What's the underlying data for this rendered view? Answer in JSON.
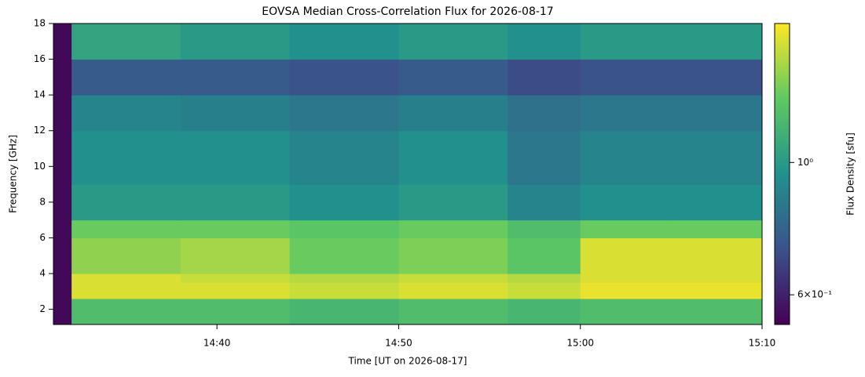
{
  "chart_data": {
    "type": "heatmap",
    "title": "EOVSA Median Cross-Correlation Flux for 2026-08-17",
    "x_label": "Time [UT on 2026-08-17]",
    "y_label": "Frequency [GHz]",
    "colorbar_label": "Flux Density [sfu]",
    "time_edges": [
      "14:31",
      "14:32",
      "14:38",
      "14:44",
      "14:50",
      "14:56",
      "15:00",
      "15:05",
      "15:10"
    ],
    "freq_edges": [
      1.15,
      2.6,
      3.5,
      4.0,
      6.0,
      7.0,
      9.0,
      12.0,
      14.0,
      16.0,
      18.0
    ],
    "z": [
      [
        0.55,
        1.2,
        1.2,
        1.15,
        1.2,
        1.15,
        1.2,
        1.2
      ],
      [
        0.55,
        1.6,
        1.6,
        1.55,
        1.6,
        1.55,
        1.65,
        1.65
      ],
      [
        0.55,
        1.6,
        1.55,
        1.5,
        1.55,
        1.5,
        1.6,
        1.6
      ],
      [
        0.55,
        1.4,
        1.45,
        1.3,
        1.35,
        1.25,
        1.6,
        1.6
      ],
      [
        0.55,
        1.3,
        1.3,
        1.25,
        1.3,
        1.2,
        1.3,
        1.3
      ],
      [
        0.55,
        1.0,
        1.0,
        0.95,
        1.0,
        0.9,
        0.95,
        0.95
      ],
      [
        0.55,
        0.95,
        0.95,
        0.9,
        0.95,
        0.85,
        0.9,
        0.9
      ],
      [
        0.55,
        0.9,
        0.88,
        0.85,
        0.88,
        0.82,
        0.85,
        0.85
      ],
      [
        0.55,
        0.75,
        0.75,
        0.72,
        0.75,
        0.7,
        0.72,
        0.72
      ],
      [
        0.55,
        1.05,
        1.0,
        0.95,
        1.0,
        0.95,
        1.0,
        1.0
      ]
    ],
    "xlim": [
      "14:31",
      "15:10"
    ],
    "xticks": [
      "14:40",
      "14:50",
      "15:00",
      "15:10"
    ],
    "ylim": [
      1.15,
      18
    ],
    "yticks": [
      2,
      4,
      6,
      8,
      10,
      12,
      14,
      16,
      18
    ],
    "clim": [
      0.535,
      1.71
    ],
    "cscale": "log",
    "colormap": "viridis",
    "cticks": [
      {
        "value": 1,
        "label": "10⁰"
      },
      {
        "value": 0.6,
        "label": "6×10⁻¹"
      }
    ]
  }
}
